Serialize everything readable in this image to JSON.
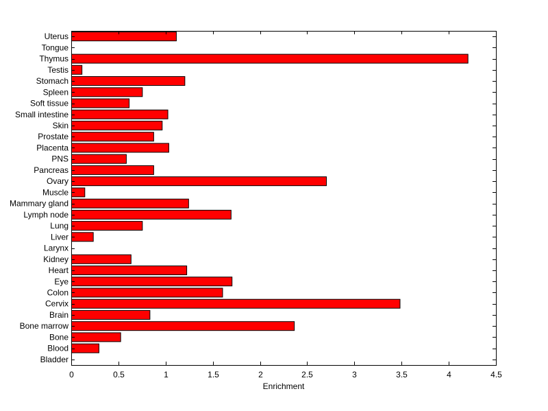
{
  "chart_data": {
    "type": "bar",
    "orientation": "horizontal",
    "title": "",
    "xlabel": "Enrichment",
    "ylabel": "",
    "xlim": [
      0,
      4.5
    ],
    "xticks": [
      "0",
      "0.5",
      "1",
      "1.5",
      "2",
      "2.5",
      "3",
      "3.5",
      "4",
      "4.5"
    ],
    "grid": false,
    "bar_color": "#ff0000",
    "categories": [
      "Bladder",
      "Blood",
      "Bone",
      "Bone marrow",
      "Brain",
      "Cervix",
      "Colon",
      "Eye",
      "Heart",
      "Kidney",
      "Larynx",
      "Liver",
      "Lung",
      "Lymph node",
      "Mammary gland",
      "Muscle",
      "Ovary",
      "Pancreas",
      "PNS",
      "Placenta",
      "Prostate",
      "Skin",
      "Small intestine",
      "Soft tissue",
      "Spleen",
      "Stomach",
      "Testis",
      "Thymus",
      "Tongue",
      "Uterus"
    ],
    "values": [
      0,
      0.29,
      0.52,
      2.36,
      0.83,
      3.48,
      1.6,
      1.7,
      1.22,
      0.63,
      0,
      0.23,
      0.75,
      1.69,
      1.24,
      0.14,
      2.7,
      0.87,
      0.58,
      1.03,
      0.87,
      0.96,
      1.02,
      0.61,
      0.75,
      1.2,
      0.11,
      4.2,
      0,
      1.11
    ]
  }
}
